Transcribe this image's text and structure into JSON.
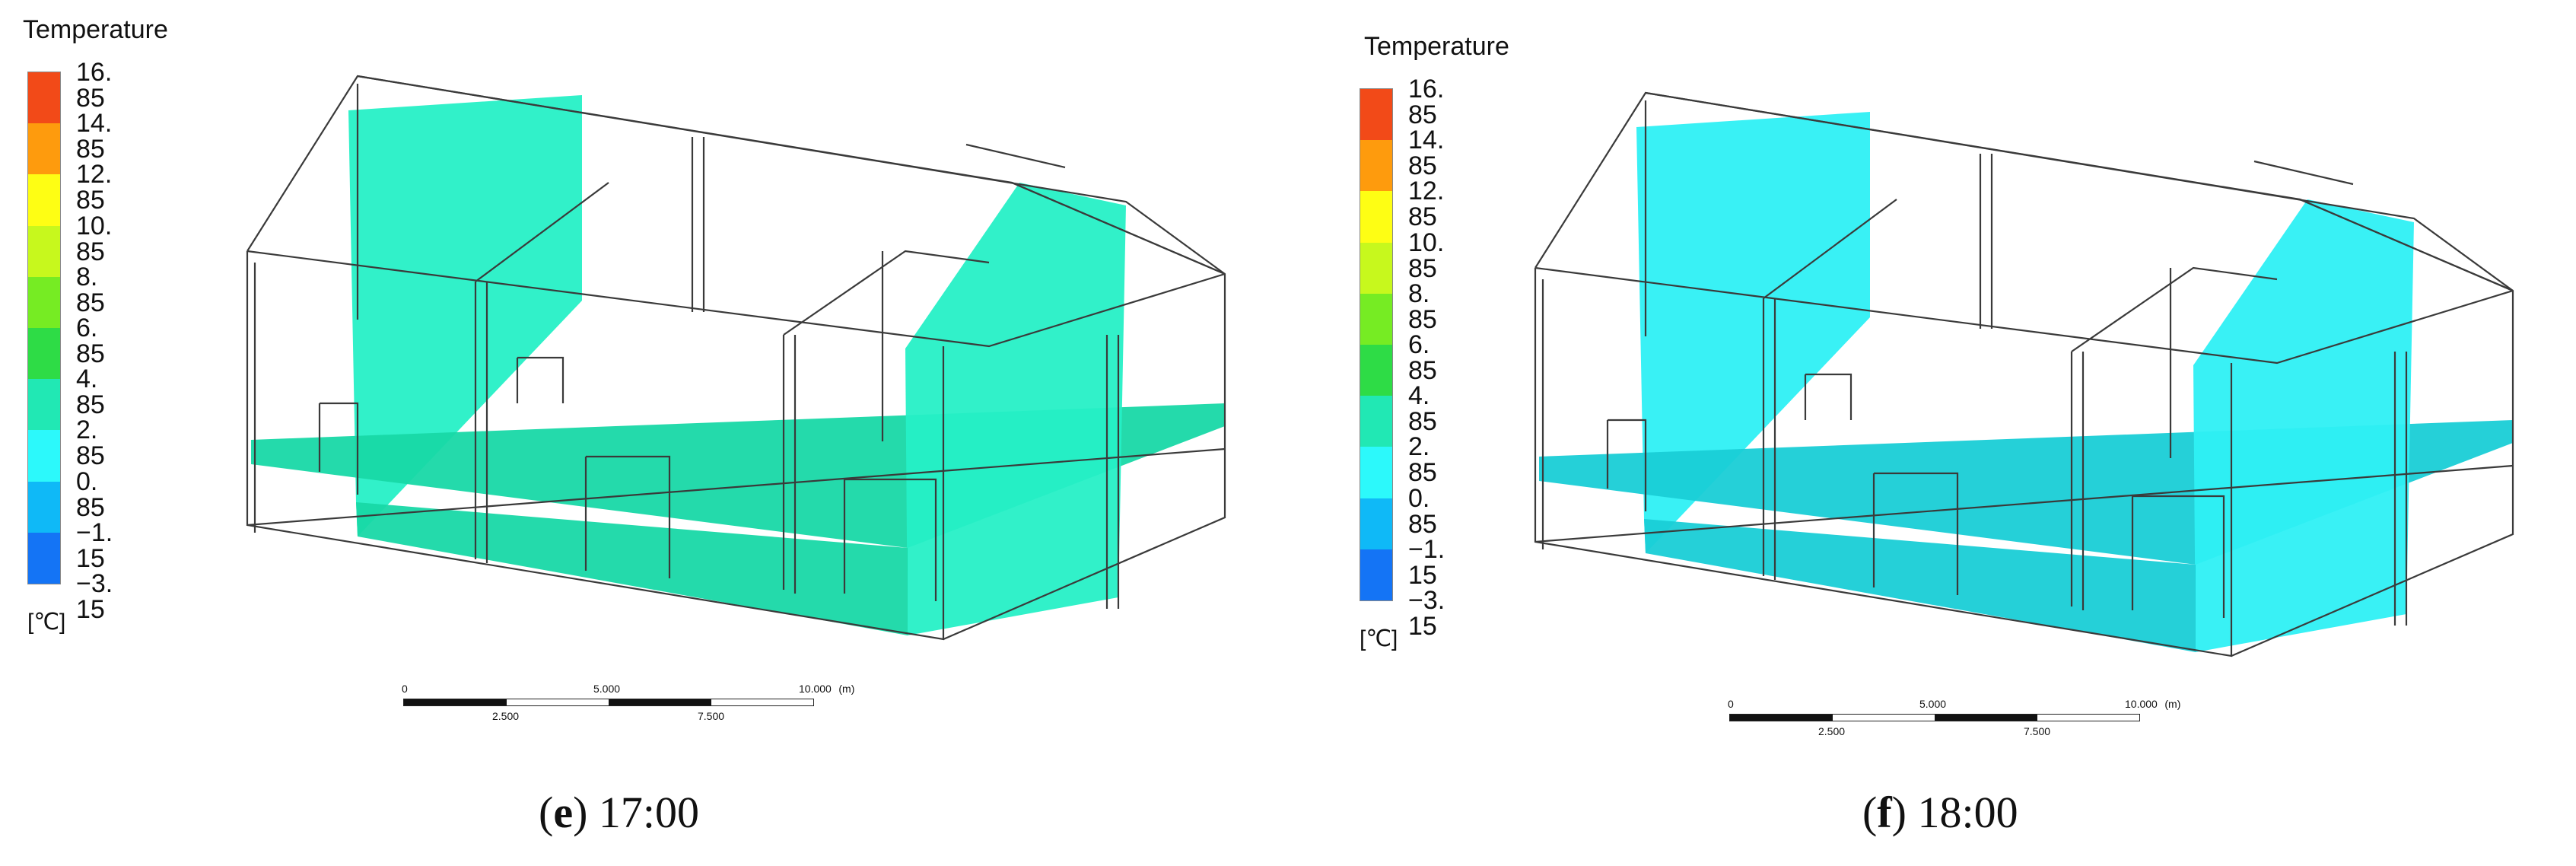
{
  "legend": {
    "title": "Temperature",
    "unit": "[℃]",
    "ticks": [
      "16. 85",
      "14. 85",
      "12. 85",
      "10. 85",
      "8. 85",
      "6. 85",
      "4. 85",
      "2. 85",
      "0. 85",
      "−1. 15",
      "−3. 15"
    ],
    "colors": [
      "#f24a18",
      "#fe9b0d",
      "#fefe14",
      "#c7f81d",
      "#76ec23",
      "#2edc46",
      "#21e8b4",
      "#2cf9fb",
      "#0fb9f7",
      "#1474f5",
      "#0f23f7"
    ]
  },
  "scale_bar": {
    "top_labels": [
      "0",
      "5.000",
      "10.000",
      "(m)"
    ],
    "bottom_labels": [
      "2.500",
      "7.500"
    ]
  },
  "panels": [
    {
      "letter": "e",
      "time": "17:00",
      "wall_color": "#26f0c6",
      "floor_color": "#18d8a6"
    },
    {
      "letter": "f",
      "time": "18:00",
      "wall_color": "#2ef0f4",
      "floor_color": "#19cdd6"
    }
  ]
}
